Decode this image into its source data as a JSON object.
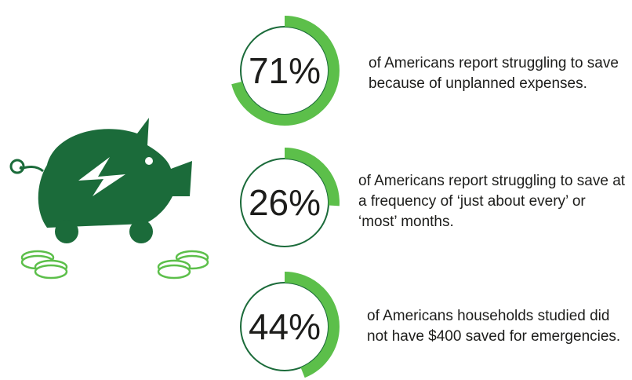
{
  "chart_data": [
    {
      "type": "progress-ring",
      "values": [
        71
      ],
      "value_labels": [
        "71%"
      ],
      "annotation": "of Americans report struggling to save because of unplanned expenses.",
      "ylim": [
        0,
        100
      ],
      "color": "#5cbf4a"
    },
    {
      "type": "progress-ring",
      "values": [
        26
      ],
      "value_labels": [
        "26%"
      ],
      "annotation": "of Americans report struggling to save at a frequency of ‘just about every’ or ‘most’ months.",
      "ylim": [
        0,
        100
      ],
      "color": "#5cbf4a"
    },
    {
      "type": "progress-ring",
      "values": [
        44
      ],
      "value_labels": [
        "44%"
      ],
      "annotation": "of Americans households studied did not have $400 saved for emergencies.",
      "ylim": [
        0,
        100
      ],
      "color": "#5cbf4a"
    }
  ]
}
